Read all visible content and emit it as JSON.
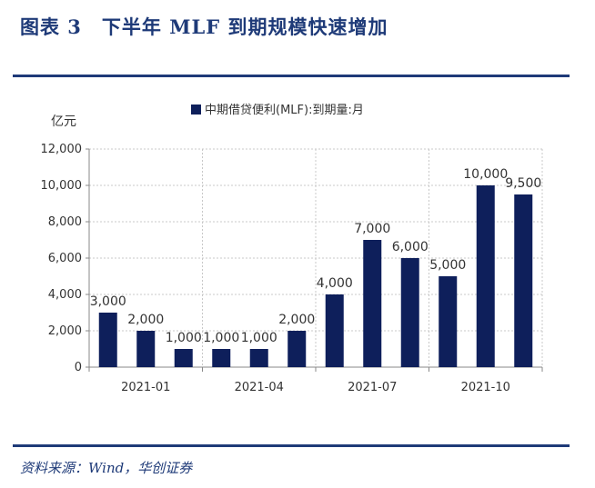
{
  "header": {
    "title": "图表 3　下半年 MLF 到期规模快速增加"
  },
  "footer": {
    "source": "资料来源：Wind，华创证券"
  },
  "colors": {
    "bar": "#0e1f5b",
    "rule": "#1e3a78",
    "grid": "#c8c8c8",
    "axis": "#888888",
    "text": "#333333"
  },
  "chart_data": {
    "type": "bar",
    "title": "",
    "ylabel": "亿元",
    "xlabel": "",
    "legend": {
      "label": "中期借贷便利(MLF):到期量:月",
      "position": "top"
    },
    "categories": [
      "2021-01",
      "2021-02",
      "2021-03",
      "2021-04",
      "2021-05",
      "2021-06",
      "2021-07",
      "2021-08",
      "2021-09",
      "2021-10",
      "2021-11",
      "2021-12"
    ],
    "x_tick_labels": [
      "2021-01",
      "2021-04",
      "2021-07",
      "2021-10"
    ],
    "values": [
      3000,
      2000,
      1000,
      1000,
      1000,
      2000,
      4000,
      7000,
      6000,
      5000,
      10000,
      9500
    ],
    "data_labels": [
      "3,000",
      "2,000",
      "1,000",
      "1,000",
      "1,000",
      "2,000",
      "4,000",
      "7,000",
      "6,000",
      "5,000",
      "10,000",
      "9,500"
    ],
    "y_ticks": [
      0,
      2000,
      4000,
      6000,
      8000,
      10000,
      12000
    ],
    "y_tick_labels": [
      "0",
      "2,000",
      "4,000",
      "6,000",
      "8,000",
      "10,000",
      "12,000"
    ],
    "ylim": [
      0,
      12000
    ],
    "grid": true
  }
}
